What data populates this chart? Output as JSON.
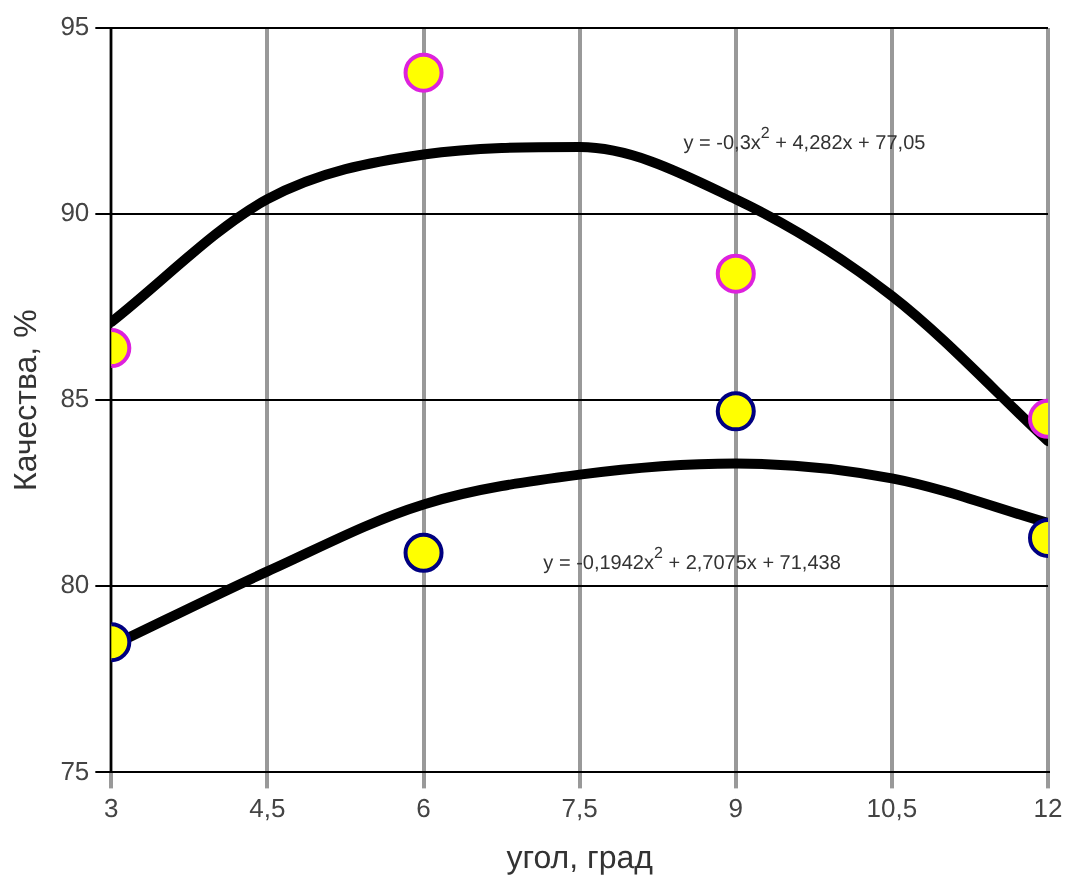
{
  "chart_data": {
    "type": "scatter",
    "xlabel": "угол, град",
    "ylabel": "Качества, %",
    "xlim": [
      3,
      12
    ],
    "xticks": [
      3,
      {
        "value": 4.5,
        "label": "4,5"
      },
      6,
      {
        "value": 7.5,
        "label": "7,5"
      },
      9,
      {
        "value": 10.5,
        "label": "10,5"
      },
      12
    ],
    "ylim": [
      75,
      95
    ],
    "yticks": [
      75,
      80,
      85,
      90,
      95
    ],
    "grid": true,
    "legend": false,
    "marker": "circle",
    "series": [
      {
        "type": "line",
        "color": "#000000",
        "line_style": "solid",
        "marker": "none",
        "x": [
          3,
          4.5,
          6,
          7.5,
          9,
          10.5,
          12
        ],
        "values": [
          87.1,
          90.4,
          91.6,
          91.8,
          90.4,
          87.8,
          83.9
        ]
      },
      {
        "type": "line",
        "color": "#000000",
        "line_style": "solid",
        "marker": "none",
        "x": [
          3,
          4.5,
          6,
          7.5,
          9,
          10.5,
          12
        ],
        "values": [
          78.4,
          80.4,
          82.2,
          83.0,
          83.3,
          82.9,
          81.7
        ]
      },
      {
        "color": "#ffff00",
        "x": [
          3,
          6,
          9,
          12
        ],
        "values": [
          86.4,
          93.8,
          88.4,
          84.5
        ]
      },
      {
        "color": "#ffff00",
        "x": [
          3,
          6,
          9,
          12
        ],
        "values": [
          78.5,
          80.9,
          84.7,
          81.3
        ]
      }
    ],
    "annotations": [
      "y = -0,3x$^{2}$ + 4,282x + 77,05",
      "y = -0,1942x$^{2}$ + 2,7075x + 71,438"
    ]
  }
}
